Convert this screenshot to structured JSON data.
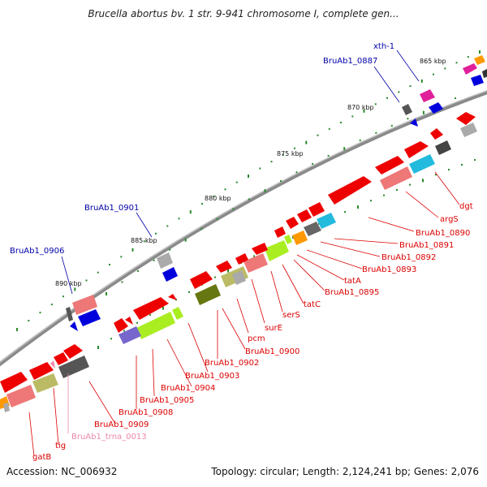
{
  "title": "Brucella abortus bv. 1 str. 9-941 chromosome I, complete gen...",
  "footer": {
    "accession": "Accession: NC_006932",
    "summary": "Topology: circular; Length: 2,124,241 bp; Genes: 2,076"
  },
  "colors": {
    "backbone": "#8a8a8a",
    "red_label": "#dd0000",
    "blue_label": "#0000aa",
    "pink_label": "#ee88aa"
  },
  "ticks": [
    "865 kbp",
    "870 kbp",
    "875 kbp",
    "880 kbp",
    "885 kbp",
    "890 kbp"
  ],
  "outer_labels": [
    "xth-1",
    "BruAb1_0887",
    "BruAb1_0901",
    "BruAb1_0906"
  ],
  "inner_labels": [
    "dgt",
    "argS",
    "BruAb1_0890",
    "BruAb1_0891",
    "BruAb1_0892",
    "BruAb1_0893",
    "tatA",
    "BruAb1_0895",
    "tatC",
    "serS",
    "surE",
    "pcm",
    "BruAb1_0900",
    "BruAb1_0902",
    "BruAb1_0903",
    "BruAb1_0904",
    "BruAb1_0905",
    "BruAb1_0908",
    "BruAb1_0909",
    "BruAb1_trna_0013",
    "tig",
    "gatB"
  ]
}
